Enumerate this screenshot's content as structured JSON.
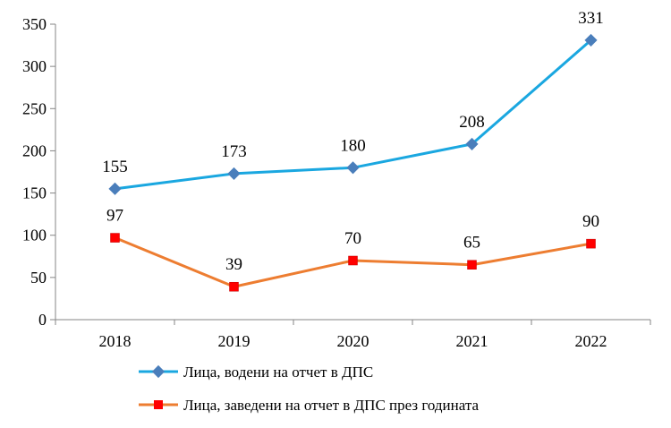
{
  "chart_data": {
    "type": "line",
    "title": "",
    "xlabel": "",
    "ylabel": "",
    "categories": [
      "2018",
      "2019",
      "2020",
      "2021",
      "2022"
    ],
    "ylim": [
      0,
      350
    ],
    "yticks": [
      "0",
      "50",
      "100",
      "150",
      "200",
      "250",
      "300",
      "350"
    ],
    "grid": false,
    "legend_position": "bottom",
    "series": [
      {
        "name": "Лица, водени на отчет в ДПС",
        "values": [
          155,
          173,
          180,
          208,
          331
        ],
        "color": "#1aa7e0",
        "marker": "diamond",
        "marker_color": "#4a7ebb"
      },
      {
        "name": "Лица, заведени на отчет в ДПС през годината",
        "values": [
          97,
          39,
          70,
          65,
          90
        ],
        "color": "#ed7d31",
        "marker": "square",
        "marker_color": "#ff0000"
      }
    ]
  }
}
